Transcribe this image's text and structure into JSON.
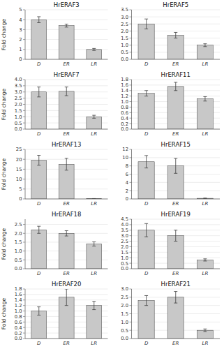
{
  "chart_data": [
    {
      "type": "bar",
      "title": "HrERAF3",
      "categories": [
        "D",
        "ER",
        "LR"
      ],
      "values": [
        4.0,
        3.4,
        1.0
      ],
      "errors": [
        0.3,
        0.15,
        0.1
      ],
      "color": "#c8c8c8",
      "ylim": [
        0.0,
        5.0
      ],
      "yticks": [
        0,
        1,
        2,
        3,
        4,
        5
      ],
      "y_label": "Fold change",
      "grid": true
    },
    {
      "type": "bar",
      "title": "HrERAF5",
      "categories": [
        "D",
        "ER",
        "LR"
      ],
      "values": [
        2.5,
        1.7,
        1.0
      ],
      "errors": [
        0.35,
        0.2,
        0.1
      ],
      "color": "#c8c8c8",
      "ylim": [
        0.0,
        3.5
      ],
      "yticks": [
        {
          "value": 0,
          "label": "0.0"
        },
        0.5,
        {
          "value": 1,
          "label": "1.0"
        },
        1.5,
        {
          "value": 2,
          "label": "2.0"
        },
        2.5,
        {
          "value": 3,
          "label": "3.0"
        },
        3.5
      ],
      "grid": true
    },
    {
      "type": "bar",
      "title": "HrERAF7",
      "categories": [
        "D",
        "ER",
        "LR"
      ],
      "values": [
        3.0,
        3.05,
        1.0
      ],
      "errors": [
        0.4,
        0.35,
        0.12
      ],
      "color": "#c8c8c8",
      "ylim": [
        0.0,
        4.0
      ],
      "yticks": [
        {
          "value": 0,
          "label": "0.0"
        },
        0.5,
        {
          "value": 1,
          "label": "1.0"
        },
        1.5,
        {
          "value": 2,
          "label": "2.0"
        },
        2.5,
        {
          "value": 3,
          "label": "3.0"
        },
        3.5,
        {
          "value": 4,
          "label": "4.0"
        }
      ],
      "y_label": "Fold change",
      "grid": true
    },
    {
      "type": "bar",
      "title": "HrERAF11",
      "categories": [
        "D",
        "ER",
        "LR"
      ],
      "values": [
        1.3,
        1.55,
        1.1
      ],
      "errors": [
        0.1,
        0.15,
        0.08
      ],
      "color": "#c8c8c8",
      "ylim": [
        0.0,
        1.8
      ],
      "yticks": [
        {
          "value": 0,
          "label": "0.0"
        },
        0.2,
        0.4,
        0.6,
        0.8,
        {
          "value": 1,
          "label": "1.0"
        },
        1.2,
        1.4,
        1.6,
        1.8
      ],
      "grid": true
    },
    {
      "type": "bar",
      "title": "HrERAF13",
      "categories": [
        "D",
        "ER",
        "LR"
      ],
      "values": [
        19.5,
        17.5,
        0.15
      ],
      "errors": [
        2.5,
        3.0,
        0.05
      ],
      "color": "#c8c8c8",
      "ylim": [
        0.0,
        25.0
      ],
      "yticks": [
        0,
        5,
        10,
        15,
        20,
        25
      ],
      "y_label": "Fold change",
      "grid": true
    },
    {
      "type": "bar",
      "title": "HrERAF15",
      "categories": [
        "D",
        "ER",
        "LR"
      ],
      "values": [
        9.0,
        8.0,
        0.15
      ],
      "errors": [
        1.5,
        1.8,
        0.05
      ],
      "color": "#c8c8c8",
      "ylim": [
        0.0,
        12.0
      ],
      "yticks": [
        0,
        2,
        4,
        6,
        8,
        10,
        12
      ],
      "grid": true
    },
    {
      "type": "bar",
      "title": "HrERAF18",
      "categories": [
        "D",
        "ER",
        "LR"
      ],
      "values": [
        2.2,
        2.0,
        1.4
      ],
      "errors": [
        0.2,
        0.15,
        0.12
      ],
      "color": "#c8c8c8",
      "ylim": [
        0.0,
        2.8
      ],
      "yticks": [
        {
          "value": 0,
          "label": "0.0"
        },
        0.5,
        {
          "value": 1,
          "label": "1.0"
        },
        1.5,
        {
          "value": 2,
          "label": "2.0"
        },
        2.5
      ],
      "y_label": "Fold change",
      "grid": true
    },
    {
      "type": "bar",
      "title": "HrERAF19",
      "categories": [
        "D",
        "ER",
        "LR"
      ],
      "values": [
        3.5,
        3.0,
        0.8
      ],
      "errors": [
        0.6,
        0.5,
        0.1
      ],
      "color": "#c8c8c8",
      "ylim": [
        0.0,
        4.5
      ],
      "yticks": [
        {
          "value": 0,
          "label": "0.0"
        },
        0.5,
        {
          "value": 1,
          "label": "1.0"
        },
        1.5,
        {
          "value": 2,
          "label": "2.0"
        },
        2.5,
        {
          "value": 3,
          "label": "3.0"
        },
        3.5,
        {
          "value": 4,
          "label": "4.0"
        },
        4.5
      ],
      "grid": true
    },
    {
      "type": "bar",
      "title": "HrERAF20",
      "categories": [
        "D",
        "ER",
        "LR"
      ],
      "values": [
        1.0,
        1.5,
        1.2
      ],
      "errors": [
        0.15,
        0.3,
        0.15
      ],
      "color": "#c8c8c8",
      "ylim": [
        0.0,
        1.8
      ],
      "yticks": [
        {
          "value": 0,
          "label": "0.0"
        },
        0.2,
        0.4,
        0.6,
        0.8,
        {
          "value": 1,
          "label": "1.0"
        },
        1.2,
        1.4,
        1.6,
        1.8
      ],
      "y_label": "Fold change",
      "grid": true
    },
    {
      "type": "bar",
      "title": "HrERAF21",
      "categories": [
        "D",
        "ER",
        "LR"
      ],
      "values": [
        2.3,
        2.5,
        0.5
      ],
      "errors": [
        0.3,
        0.35,
        0.08
      ],
      "color": "#c8c8c8",
      "ylim": [
        0.0,
        3.0
      ],
      "yticks": [
        {
          "value": 0,
          "label": "0.0"
        },
        0.5,
        {
          "value": 1,
          "label": "1.0"
        },
        1.5,
        {
          "value": 2,
          "label": "2.0"
        },
        2.5,
        {
          "value": 3,
          "label": "3.0"
        }
      ],
      "grid": true
    }
  ]
}
